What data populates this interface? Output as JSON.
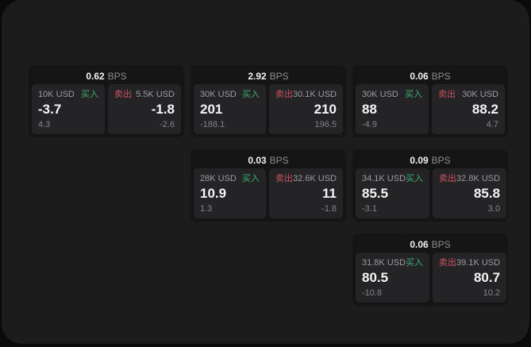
{
  "labels": {
    "bps": "BPS",
    "buy": "买入",
    "sell": "卖出"
  },
  "colors": {
    "buy": "#3fae6e",
    "sell": "#cc5261",
    "page_bg": "#0a0a0a",
    "panel_bg": "#1c1c1d",
    "card_bg": "#151516",
    "tile_bg": "#242426"
  },
  "cards": [
    {
      "bps": "0.62",
      "buy": {
        "size": "10K USD",
        "value": "-3.7",
        "delta": "4.3"
      },
      "sell": {
        "size": "5.5K USD",
        "value": "-1.8",
        "delta": "-2.6"
      }
    },
    {
      "bps": "2.92",
      "buy": {
        "size": "30K USD",
        "value": "201",
        "delta": "-188.1"
      },
      "sell": {
        "size": "30.1K USD",
        "value": "210",
        "delta": "196.5"
      }
    },
    {
      "bps": "0.06",
      "buy": {
        "size": "30K USD",
        "value": "88",
        "delta": "-4.9"
      },
      "sell": {
        "size": "30K USD",
        "value": "88.2",
        "delta": "4.7"
      }
    },
    {
      "bps": "0.03",
      "buy": {
        "size": "28K USD",
        "value": "10.9",
        "delta": "1.3"
      },
      "sell": {
        "size": "32.6K USD",
        "value": "11",
        "delta": "-1.8"
      }
    },
    {
      "bps": "0.09",
      "buy": {
        "size": "34.1K USD",
        "value": "85.5",
        "delta": "-3.1"
      },
      "sell": {
        "size": "32.8K USD",
        "value": "85.8",
        "delta": "3.0"
      }
    },
    {
      "bps": "0.06",
      "buy": {
        "size": "31.8K USD",
        "value": "80.5",
        "delta": "-10.8"
      },
      "sell": {
        "size": "39.1K USD",
        "value": "80.7",
        "delta": "10.2"
      }
    }
  ]
}
